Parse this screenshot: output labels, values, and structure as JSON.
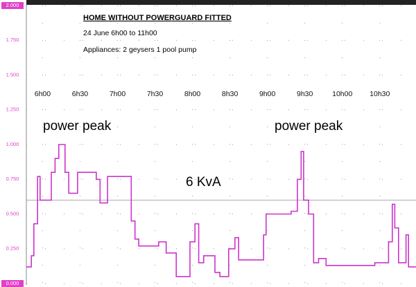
{
  "chart_data": {
    "type": "line",
    "title": "HOME WITHOUT POWERGUARD FITTED",
    "subtitle": "24 June 6h00 to 11h00",
    "annotations": [
      "Appliances: 2 geysers 1 pool pump",
      "power peak",
      "power peak"
    ],
    "threshold": {
      "value": 0.6,
      "label": "6 KvA",
      "color": "#aaaaaa"
    },
    "xlim": [
      347,
      659
    ],
    "xticks": [
      {
        "value": 360,
        "label": "6h00"
      },
      {
        "value": 390,
        "label": "6h30"
      },
      {
        "value": 420,
        "label": "7h00"
      },
      {
        "value": 450,
        "label": "7h30"
      },
      {
        "value": 480,
        "label": "8h00"
      },
      {
        "value": 510,
        "label": "8h30"
      },
      {
        "value": 540,
        "label": "9h00"
      },
      {
        "value": 570,
        "label": "9h30"
      },
      {
        "value": 600,
        "label": "10h00"
      },
      {
        "value": 630,
        "label": "10h30"
      }
    ],
    "ylim": [
      0,
      2
    ],
    "yticks": [
      {
        "value": 0,
        "label": "0.000"
      },
      {
        "value": 0.25,
        "label": "0.250"
      },
      {
        "value": 0.5,
        "label": "0.500"
      },
      {
        "value": 0.75,
        "label": "0.750"
      },
      {
        "value": 1,
        "label": "1.000"
      },
      {
        "value": 1.25,
        "label": "1.250"
      },
      {
        "value": 1.5,
        "label": "1.500"
      },
      {
        "value": 1.75,
        "label": "1.750"
      },
      {
        "value": 2,
        "label": "2.000"
      }
    ],
    "grid": true,
    "axis_color": "#e040c8",
    "series": [
      {
        "color": "#cc33cc",
        "x": [
          347,
          351,
          351,
          353,
          353,
          356,
          356,
          358,
          358,
          367,
          367,
          370,
          370,
          373,
          373,
          378,
          378,
          381,
          381,
          388,
          388,
          403,
          403,
          406,
          406,
          412,
          412,
          431,
          431,
          434,
          434,
          437,
          437,
          453,
          453,
          459,
          459,
          467,
          467,
          478,
          478,
          482,
          482,
          485,
          485,
          489,
          489,
          498,
          498,
          502,
          502,
          509,
          509,
          514,
          514,
          517,
          517,
          537,
          537,
          539,
          539,
          559,
          559,
          564,
          564,
          567,
          567,
          569,
          569,
          573,
          573,
          577,
          577,
          581,
          581,
          587,
          587,
          626,
          626,
          637,
          637,
          640,
          640,
          642,
          642,
          645,
          645,
          651,
          651,
          653,
          653,
          659
        ],
        "values": [
          0.12,
          0.12,
          0.2,
          0.2,
          0.43,
          0.43,
          0.77,
          0.77,
          0.6,
          0.6,
          0.8,
          0.8,
          0.9,
          0.9,
          1.0,
          1.0,
          0.8,
          0.8,
          0.65,
          0.65,
          0.8,
          0.8,
          0.75,
          0.75,
          0.58,
          0.58,
          0.77,
          0.77,
          0.45,
          0.45,
          0.32,
          0.32,
          0.27,
          0.27,
          0.3,
          0.3,
          0.22,
          0.22,
          0.05,
          0.05,
          0.3,
          0.3,
          0.43,
          0.43,
          0.15,
          0.15,
          0.2,
          0.2,
          0.08,
          0.08,
          0.05,
          0.05,
          0.25,
          0.25,
          0.33,
          0.33,
          0.17,
          0.17,
          0.35,
          0.35,
          0.5,
          0.5,
          0.52,
          0.52,
          0.75,
          0.75,
          0.95,
          0.95,
          0.6,
          0.6,
          0.5,
          0.5,
          0.15,
          0.15,
          0.18,
          0.18,
          0.13,
          0.13,
          0.15,
          0.15,
          0.3,
          0.3,
          0.57,
          0.57,
          0.4,
          0.4,
          0.15,
          0.15,
          0.35,
          0.35,
          0.12,
          0.12
        ]
      }
    ]
  }
}
